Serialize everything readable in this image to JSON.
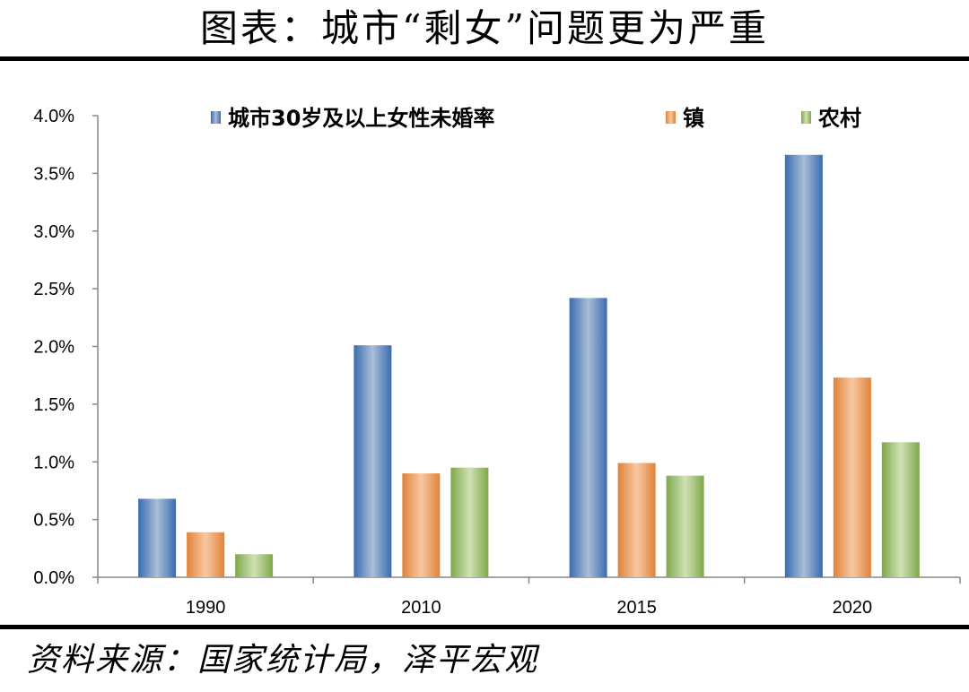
{
  "title": "图表：城市“剩女”问题更为严重",
  "source": "资料来源：国家统计局，泽平宏观",
  "chart_data": {
    "type": "bar",
    "categories": [
      "1990",
      "2010",
      "2015",
      "2020"
    ],
    "series": [
      {
        "name": "城市30岁及以上女性未婚率",
        "values": [
          0.68,
          2.01,
          2.42,
          3.66
        ],
        "color": "#4f81bd"
      },
      {
        "name": "镇",
        "values": [
          0.39,
          0.9,
          0.99,
          1.73
        ],
        "color": "#f79646"
      },
      {
        "name": "农村",
        "values": [
          0.2,
          0.95,
          0.88,
          1.17
        ],
        "color": "#9bbb59"
      }
    ],
    "yticks": [
      "0.0%",
      "0.5%",
      "1.0%",
      "1.5%",
      "2.0%",
      "2.5%",
      "3.0%",
      "3.5%",
      "4.0%"
    ],
    "ylim": [
      0,
      4
    ],
    "ylabel": "",
    "xlabel": "",
    "legend_position": "top",
    "grid": false
  }
}
